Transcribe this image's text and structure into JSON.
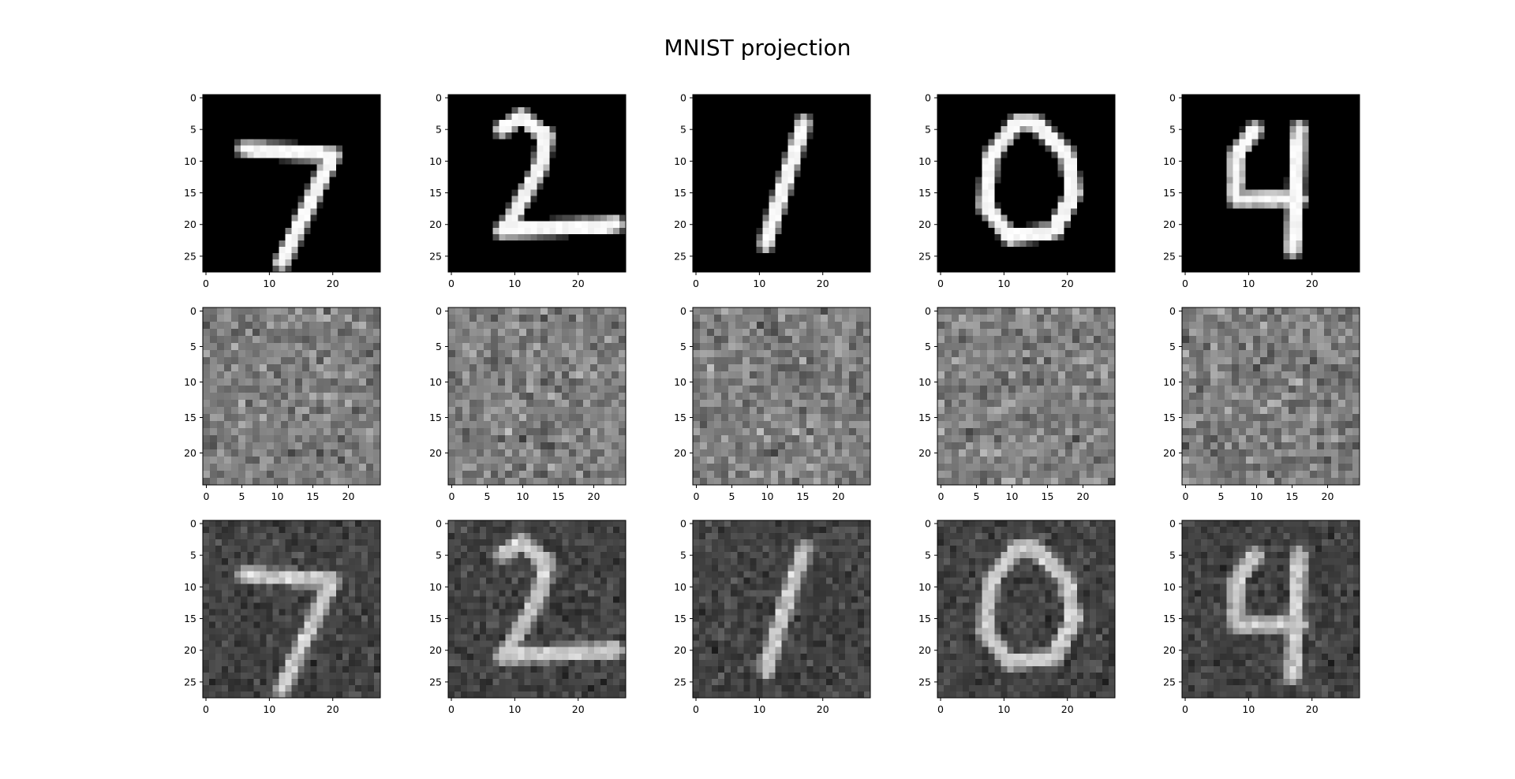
{
  "figure": {
    "title": "MNIST projection"
  },
  "chart_data": {
    "type": "heatmap",
    "colormap": "gray",
    "title": "MNIST projection",
    "layout": {
      "rows": 3,
      "cols": 5
    },
    "grid": false,
    "row_descriptions": [
      "original 28x28 digit images",
      "25x25 random-looking projections",
      "28x28 noisy reconstructions"
    ],
    "digits": [
      "7",
      "2",
      "1",
      "0",
      "4"
    ],
    "rows": [
      {
        "image_size": 28,
        "xlim": [
          -0.5,
          27.5
        ],
        "ylim": [
          27.5,
          -0.5
        ],
        "x_ticks": [
          0,
          10,
          20
        ],
        "y_ticks": [
          0,
          5,
          10,
          15,
          20,
          25
        ],
        "x_tick_labels": [
          "0",
          "10",
          "20"
        ],
        "y_tick_labels": [
          "0",
          "5",
          "10",
          "15",
          "20",
          "25"
        ]
      },
      {
        "image_size": 25,
        "xlim": [
          -0.5,
          24.5
        ],
        "ylim": [
          24.5,
          -0.5
        ],
        "x_ticks": [
          0,
          5,
          10,
          15,
          20
        ],
        "y_ticks": [
          0,
          5,
          10,
          15,
          20
        ],
        "x_tick_labels": [
          "0",
          "5",
          "10",
          "15",
          "20"
        ],
        "y_tick_labels": [
          "0",
          "5",
          "10",
          "15",
          "20"
        ]
      },
      {
        "image_size": 28,
        "xlim": [
          -0.5,
          27.5
        ],
        "ylim": [
          27.5,
          -0.5
        ],
        "x_ticks": [
          0,
          10,
          20
        ],
        "y_ticks": [
          0,
          5,
          10,
          15,
          20,
          25
        ],
        "x_tick_labels": [
          "0",
          "10",
          "20"
        ],
        "y_tick_labels": [
          "0",
          "5",
          "10",
          "15",
          "20",
          "25"
        ]
      }
    ],
    "digit_strokes": {
      "7": [
        [
          [
            6,
            8
          ],
          [
            20,
            9
          ]
        ],
        [
          [
            20,
            9
          ],
          [
            12,
            26
          ]
        ]
      ],
      "2": [
        [
          [
            8,
            5
          ],
          [
            11,
            3
          ]
        ],
        [
          [
            11,
            3
          ],
          [
            15,
            6
          ]
        ],
        [
          [
            15,
            6
          ],
          [
            14,
            11
          ]
        ],
        [
          [
            14,
            11
          ],
          [
            9,
            20
          ]
        ],
        [
          [
            9,
            20
          ],
          [
            8,
            21
          ]
        ],
        [
          [
            8,
            21
          ],
          [
            26,
            20
          ]
        ]
      ],
      "1": [
        [
          [
            17,
            4
          ],
          [
            11,
            23
          ]
        ]
      ],
      "0": [
        [
          [
            12,
            4
          ],
          [
            15,
            4
          ]
        ],
        [
          [
            15,
            4
          ],
          [
            20,
            9
          ]
        ],
        [
          [
            20,
            9
          ],
          [
            21,
            15
          ]
        ],
        [
          [
            21,
            15
          ],
          [
            18,
            21
          ]
        ],
        [
          [
            18,
            21
          ],
          [
            11,
            22
          ]
        ],
        [
          [
            11,
            22
          ],
          [
            7,
            17
          ]
        ],
        [
          [
            7,
            17
          ],
          [
            8,
            9
          ]
        ],
        [
          [
            8,
            9
          ],
          [
            12,
            4
          ]
        ]
      ],
      "4": [
        [
          [
            11,
            5
          ],
          [
            8,
            9
          ]
        ],
        [
          [
            8,
            9
          ],
          [
            8,
            16
          ]
        ],
        [
          [
            8,
            16
          ],
          [
            18,
            16
          ]
        ],
        [
          [
            18,
            5
          ],
          [
            17,
            24
          ]
        ]
      ]
    }
  }
}
